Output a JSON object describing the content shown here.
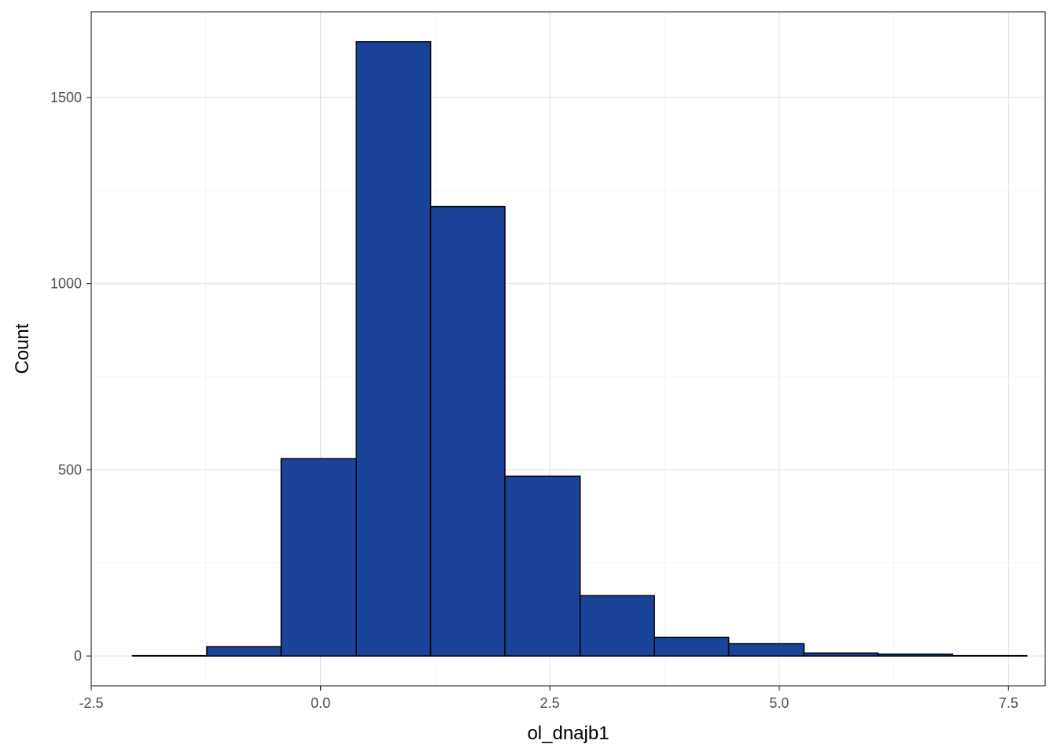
{
  "chart_data": {
    "type": "bar",
    "title": "",
    "xlabel": "ol_dnajb1",
    "ylabel": "Count",
    "xlim": [
      -2.5,
      7.9
    ],
    "ylim": [
      -80,
      1730
    ],
    "x_ticks": [
      -2.5,
      0.0,
      2.5,
      5.0,
      7.5
    ],
    "x_tick_labels": [
      "-2.5",
      "0.0",
      "2.5",
      "5.0",
      "7.5"
    ],
    "y_ticks": [
      0,
      500,
      1000,
      1500
    ],
    "y_tick_labels": [
      "0",
      "500",
      "1000",
      "1500"
    ],
    "grid": true,
    "legend": "none",
    "bar_fill": "#1A4499",
    "bar_stroke": "#000000",
    "bins": [
      {
        "x0": -2.05,
        "x1": -1.24,
        "count": 1
      },
      {
        "x0": -1.24,
        "x1": -0.43,
        "count": 25
      },
      {
        "x0": -0.43,
        "x1": 0.39,
        "count": 530
      },
      {
        "x0": 0.39,
        "x1": 1.2,
        "count": 1650
      },
      {
        "x0": 1.2,
        "x1": 2.01,
        "count": 1207
      },
      {
        "x0": 2.01,
        "x1": 2.83,
        "count": 483
      },
      {
        "x0": 2.83,
        "x1": 3.64,
        "count": 162
      },
      {
        "x0": 3.64,
        "x1": 4.45,
        "count": 50
      },
      {
        "x0": 4.45,
        "x1": 5.27,
        "count": 33
      },
      {
        "x0": 5.27,
        "x1": 6.08,
        "count": 8
      },
      {
        "x0": 6.08,
        "x1": 6.89,
        "count": 5
      },
      {
        "x0": 6.89,
        "x1": 7.7,
        "count": 1
      }
    ]
  }
}
